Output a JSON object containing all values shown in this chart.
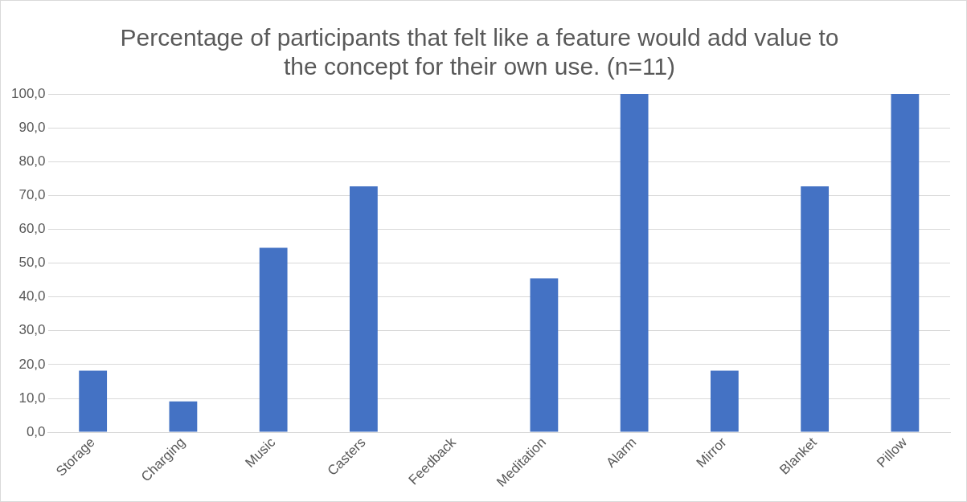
{
  "chart_data": {
    "type": "bar",
    "title": "Percentage of participants that felt like a feature would add value to the concept for their own use. (n=11)",
    "categories": [
      "Storage",
      "Charging",
      "Music",
      "Casters",
      "Feedback",
      "Meditation",
      "Alarm",
      "Mirror",
      "Blanket",
      "Pillow"
    ],
    "values": [
      18.2,
      9.1,
      54.5,
      72.7,
      0,
      45.5,
      100,
      18.2,
      72.7,
      100
    ],
    "color": "#4472c4",
    "ylim": [
      0,
      100
    ],
    "yticks": [
      {
        "value": 0,
        "label": "0,0"
      },
      {
        "value": 10,
        "label": "10,0"
      },
      {
        "value": 20,
        "label": "20,0"
      },
      {
        "value": 30,
        "label": "30,0"
      },
      {
        "value": 40,
        "label": "40,0"
      },
      {
        "value": 50,
        "label": "50,0"
      },
      {
        "value": 60,
        "label": "60,0"
      },
      {
        "value": 70,
        "label": "70,0"
      },
      {
        "value": 80,
        "label": "80,0"
      },
      {
        "value": 90,
        "label": "90,0"
      },
      {
        "value": 100,
        "label": "100,0"
      }
    ],
    "grid": "y",
    "legend": false
  }
}
